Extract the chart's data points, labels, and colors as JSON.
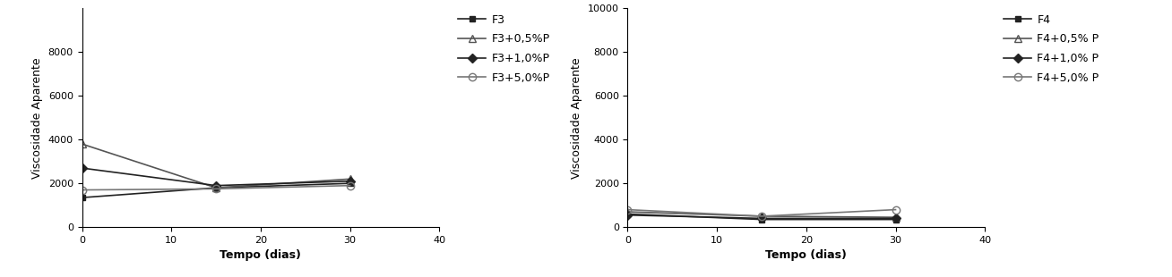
{
  "chart1": {
    "xlabel": "Tempo (dias)",
    "ylabel": "Viscosidade Aparente",
    "xlim": [
      0,
      40
    ],
    "ylim": [
      0,
      10000
    ],
    "xticks": [
      0,
      10,
      20,
      30,
      40
    ],
    "yticks": [
      0,
      2000,
      4000,
      6000,
      8000
    ],
    "series": [
      {
        "label": "F3",
        "x": [
          0,
          15,
          30
        ],
        "y": [
          1350,
          1800,
          2000
        ],
        "color": "#222222",
        "marker": "s",
        "markersize": 5,
        "fillstyle": "full",
        "linestyle": "-",
        "linewidth": 1.2
      },
      {
        "label": "F3+0,5%P",
        "x": [
          0,
          15,
          30
        ],
        "y": [
          3800,
          1800,
          2200
        ],
        "color": "#555555",
        "marker": "^",
        "markersize": 6,
        "fillstyle": "none",
        "linestyle": "-",
        "linewidth": 1.2
      },
      {
        "label": "F3+1,0%P",
        "x": [
          0,
          15,
          30
        ],
        "y": [
          2700,
          1900,
          2100
        ],
        "color": "#222222",
        "marker": "D",
        "markersize": 5,
        "fillstyle": "full",
        "linestyle": "-",
        "linewidth": 1.2
      },
      {
        "label": "F3+5,0%P",
        "x": [
          0,
          15,
          30
        ],
        "y": [
          1700,
          1750,
          1900
        ],
        "color": "#777777",
        "marker": "o",
        "markersize": 6,
        "fillstyle": "none",
        "linestyle": "-",
        "linewidth": 1.2
      }
    ]
  },
  "chart2": {
    "xlabel": "Tempo (dias)",
    "ylabel": "Viscosidade Aparente",
    "xlim": [
      0,
      40
    ],
    "ylim": [
      0,
      10000
    ],
    "xticks": [
      0,
      10,
      20,
      30,
      40
    ],
    "yticks": [
      0,
      2000,
      4000,
      6000,
      8000,
      10000
    ],
    "series": [
      {
        "label": "F4",
        "x": [
          0,
          15,
          30
        ],
        "y": [
          600,
          350,
          350
        ],
        "color": "#222222",
        "marker": "s",
        "markersize": 5,
        "fillstyle": "full",
        "linestyle": "-",
        "linewidth": 1.2
      },
      {
        "label": "F4+0,5% P",
        "x": [
          0,
          15,
          30
        ],
        "y": [
          700,
          500,
          450
        ],
        "color": "#555555",
        "marker": "^",
        "markersize": 6,
        "fillstyle": "none",
        "linestyle": "-",
        "linewidth": 1.2
      },
      {
        "label": "F4+1,0% P",
        "x": [
          0,
          15,
          30
        ],
        "y": [
          550,
          400,
          400
        ],
        "color": "#222222",
        "marker": "D",
        "markersize": 5,
        "fillstyle": "full",
        "linestyle": "-",
        "linewidth": 1.2
      },
      {
        "label": "F4+5,0% P",
        "x": [
          0,
          15,
          30
        ],
        "y": [
          800,
          500,
          800
        ],
        "color": "#777777",
        "marker": "o",
        "markersize": 6,
        "fillstyle": "none",
        "linestyle": "-",
        "linewidth": 1.2
      }
    ]
  },
  "font_size_label": 9,
  "font_size_tick": 8,
  "font_size_legend": 9,
  "background_color": "#ffffff"
}
